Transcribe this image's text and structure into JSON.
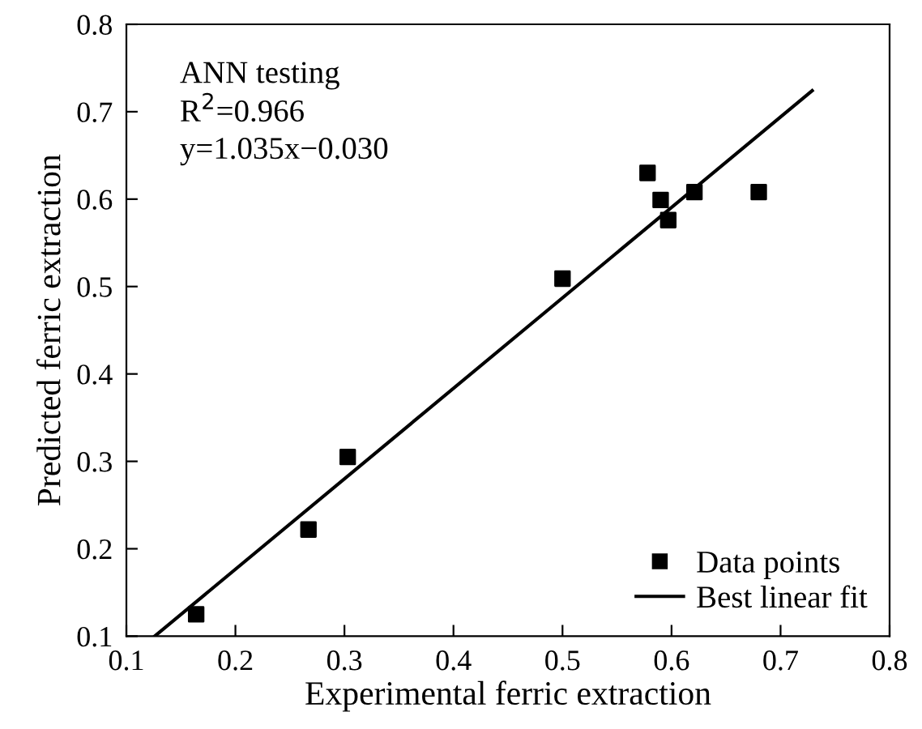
{
  "chart_data": {
    "type": "scatter",
    "xlabel": "Experimental ferric extraction",
    "ylabel": "Predicted ferric extraction",
    "xlim": [
      0.1,
      0.8
    ],
    "ylim": [
      0.1,
      0.8
    ],
    "xticks": [
      0.1,
      0.2,
      0.3,
      0.4,
      0.5,
      0.6,
      0.7,
      0.8
    ],
    "yticks": [
      0.1,
      0.2,
      0.3,
      0.4,
      0.5,
      0.6,
      0.7,
      0.8
    ],
    "annotations": [
      "ANN testing",
      "R$^{2}$=0.966",
      "y=1.035x−0.030"
    ],
    "legend": "bottom right",
    "grid": false,
    "series": [
      {
        "name": "Data points",
        "marker": "square",
        "color": "#000000",
        "x": [
          0.164,
          0.267,
          0.303,
          0.5,
          0.578,
          0.59,
          0.597,
          0.621,
          0.68
        ],
        "values": [
          0.125,
          0.222,
          0.305,
          0.509,
          0.63,
          0.599,
          0.576,
          0.608,
          0.608
        ]
      },
      {
        "name": "Best linear fit",
        "type": "line",
        "marker": "none",
        "line_style": "solid",
        "color": "#000000",
        "x": [
          0.126,
          0.729
        ],
        "values": [
          0.1,
          0.724
        ]
      }
    ]
  }
}
